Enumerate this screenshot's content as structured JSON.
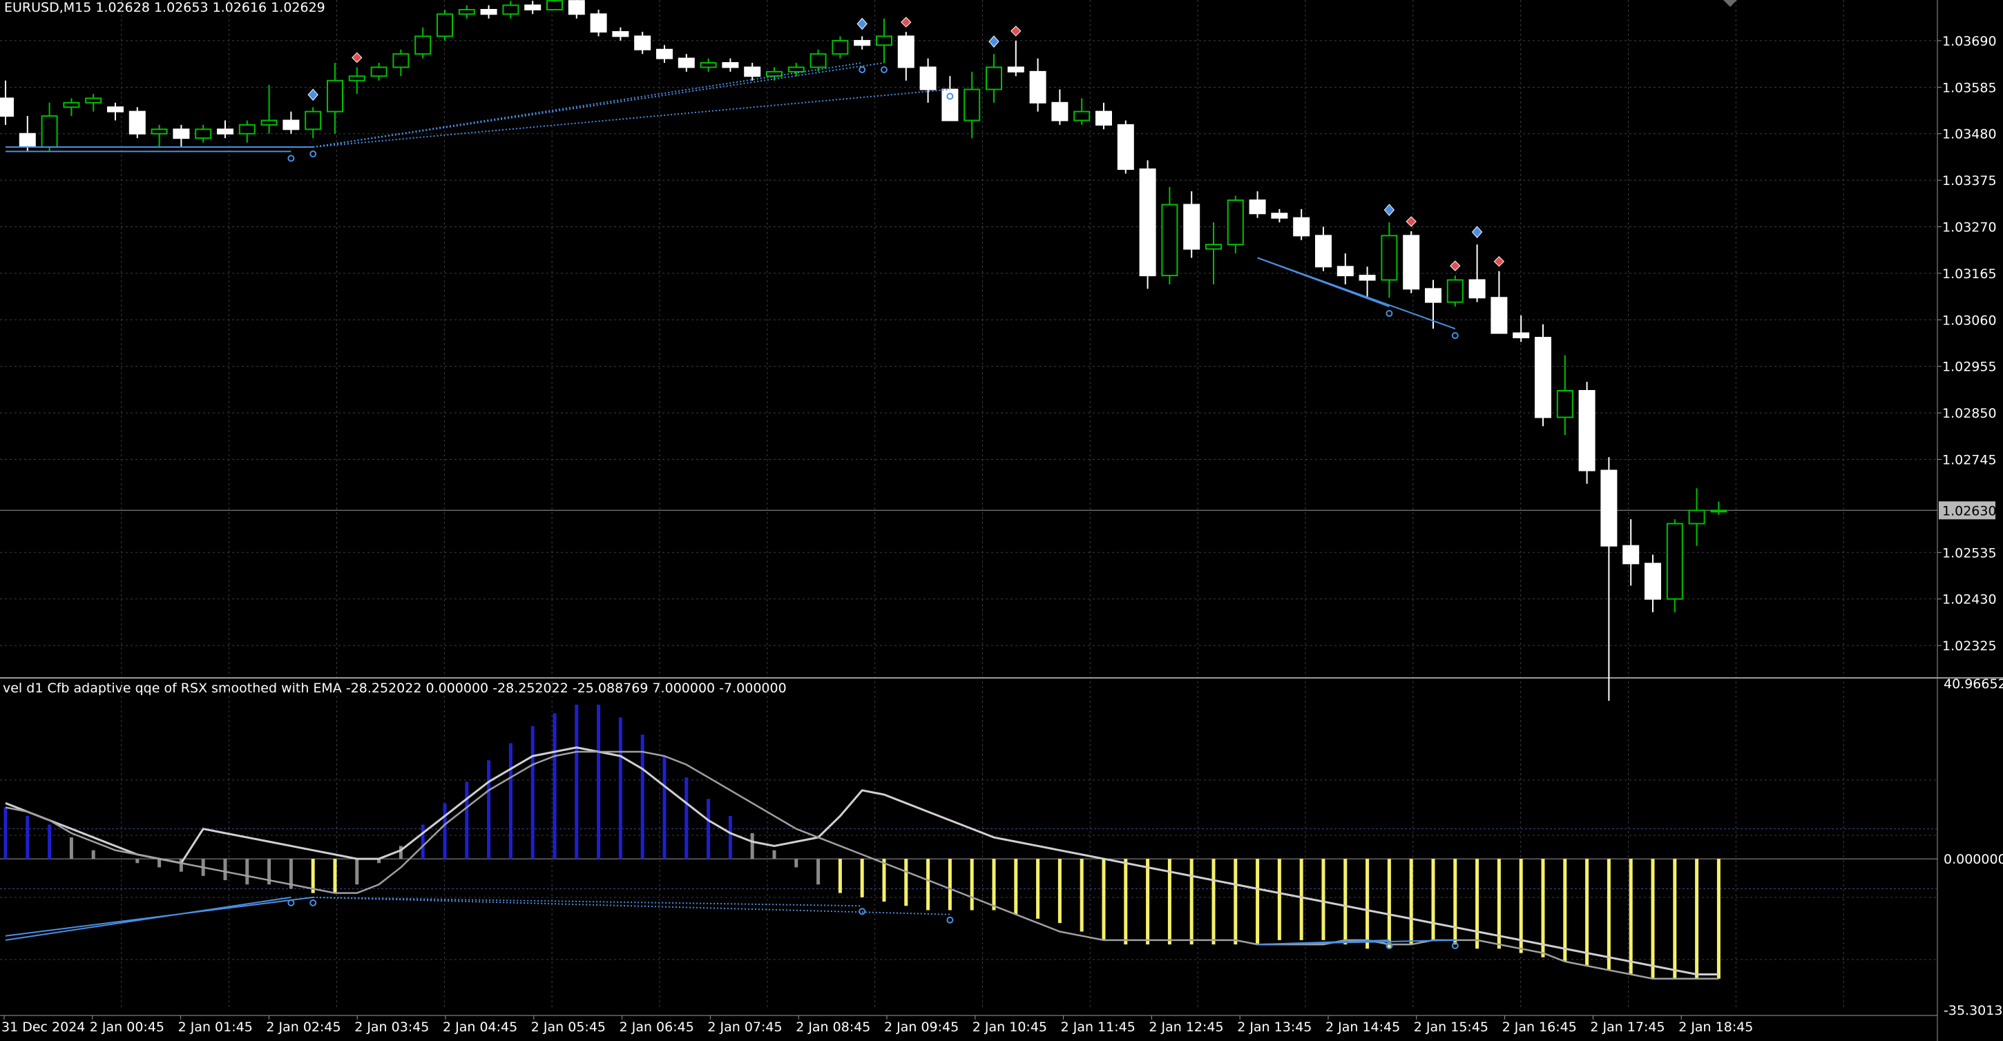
{
  "header": {
    "symbol_line": "EURUSD,M15  1.02628 1.02653 1.02616 1.02629",
    "indicator_line": "vel d1 Cfb adaptive qqe of RSX smoothed with EMA -28.252022 0.000000 -28.252022 -25.088769 7.000000 -7.000000"
  },
  "colors": {
    "background": "#000000",
    "grid": "#3a3f46",
    "bull_body": "#000000",
    "bull_outline": "#00c000",
    "bear_body": "#ffffff",
    "bear_outline": "#ffffff",
    "divergence_line": "#4a90e2",
    "histogram_positive": "#1f1fcf",
    "histogram_neutral": "#8a8a8a",
    "histogram_negative": "#f5f06a",
    "signal_line": "#c8c8c8",
    "level_line": "#6a6a6a",
    "arrow_buy": "#4a90e2",
    "arrow_sell": "#e05050"
  },
  "chart_data": [
    {
      "type": "candlestick",
      "title": "EURUSD,M15",
      "ohlc_header": {
        "open": 1.02628,
        "high": 1.02653,
        "low": 1.02616,
        "close": 1.02629
      },
      "price_ticks": [
        "1.03690",
        "1.03585",
        "1.03480",
        "1.03375",
        "1.03270",
        "1.03165",
        "1.03060",
        "1.02955",
        "1.02850",
        "1.02745",
        "1.02535",
        "1.02430",
        "1.02325"
      ],
      "current_price": "1.02630",
      "ylim": [
        1.02255,
        1.0376
      ],
      "x_labels": [
        "31 Dec 2024",
        "2 Jan 00:45",
        "2 Jan 01:45",
        "2 Jan 02:45",
        "2 Jan 03:45",
        "2 Jan 04:45",
        "2 Jan 05:45",
        "2 Jan 06:45",
        "2 Jan 07:45",
        "2 Jan 08:45",
        "2 Jan 09:45",
        "2 Jan 10:45",
        "2 Jan 11:45",
        "2 Jan 12:45",
        "2 Jan 13:45",
        "2 Jan 14:45",
        "2 Jan 15:45",
        "2 Jan 16:45",
        "2 Jan 17:45",
        "2 Jan 18:45"
      ],
      "candles": [
        [
          1.0356,
          1.036,
          1.035,
          1.0352
        ],
        [
          1.0348,
          1.0352,
          1.0344,
          1.0345
        ],
        [
          1.0345,
          1.0355,
          1.0344,
          1.0352
        ],
        [
          1.0354,
          1.0356,
          1.0352,
          1.0355
        ],
        [
          1.0355,
          1.0357,
          1.0353,
          1.0356
        ],
        [
          1.0354,
          1.0355,
          1.0351,
          1.0353
        ],
        [
          1.0353,
          1.0354,
          1.0347,
          1.0348
        ],
        [
          1.0348,
          1.035,
          1.0345,
          1.0349
        ],
        [
          1.0349,
          1.035,
          1.0345,
          1.0347
        ],
        [
          1.0347,
          1.035,
          1.0346,
          1.0349
        ],
        [
          1.0349,
          1.0351,
          1.0347,
          1.0348
        ],
        [
          1.0348,
          1.0351,
          1.0346,
          1.035
        ],
        [
          1.035,
          1.0359,
          1.0348,
          1.0351
        ],
        [
          1.0351,
          1.0353,
          1.0348,
          1.0349
        ],
        [
          1.0349,
          1.0354,
          1.0347,
          1.0353
        ],
        [
          1.0353,
          1.0364,
          1.0348,
          1.036
        ],
        [
          1.036,
          1.0363,
          1.0357,
          1.0361
        ],
        [
          1.0361,
          1.0364,
          1.036,
          1.0363
        ],
        [
          1.0363,
          1.0367,
          1.0361,
          1.0366
        ],
        [
          1.0366,
          1.0372,
          1.0365,
          1.037
        ],
        [
          1.037,
          1.0376,
          1.0369,
          1.0375
        ],
        [
          1.0375,
          1.0377,
          1.0374,
          1.0376
        ],
        [
          1.0376,
          1.0377,
          1.0374,
          1.0375
        ],
        [
          1.0375,
          1.0378,
          1.0374,
          1.0377
        ],
        [
          1.0377,
          1.0378,
          1.0375,
          1.0376
        ],
        [
          1.0376,
          1.038,
          1.0376,
          1.0378
        ],
        [
          1.0378,
          1.0379,
          1.0374,
          1.0375
        ],
        [
          1.0375,
          1.0376,
          1.037,
          1.0371
        ],
        [
          1.0371,
          1.0372,
          1.0369,
          1.037
        ],
        [
          1.037,
          1.0371,
          1.0366,
          1.0367
        ],
        [
          1.0367,
          1.0368,
          1.0364,
          1.0365
        ],
        [
          1.0365,
          1.0366,
          1.0362,
          1.0363
        ],
        [
          1.0363,
          1.0365,
          1.0362,
          1.0364
        ],
        [
          1.0364,
          1.0365,
          1.0362,
          1.0363
        ],
        [
          1.0363,
          1.0364,
          1.036,
          1.0361
        ],
        [
          1.0361,
          1.0363,
          1.036,
          1.0362
        ],
        [
          1.0362,
          1.0364,
          1.0361,
          1.0363
        ],
        [
          1.0363,
          1.0367,
          1.0362,
          1.0366
        ],
        [
          1.0366,
          1.037,
          1.0365,
          1.0369
        ],
        [
          1.0369,
          1.037,
          1.0367,
          1.0368
        ],
        [
          1.0368,
          1.0374,
          1.0364,
          1.037
        ],
        [
          1.037,
          1.0371,
          1.036,
          1.0363
        ],
        [
          1.0363,
          1.0365,
          1.0355,
          1.0358
        ],
        [
          1.0358,
          1.0361,
          1.0351,
          1.0351
        ],
        [
          1.0351,
          1.0362,
          1.0347,
          1.0358
        ],
        [
          1.0358,
          1.0366,
          1.0355,
          1.0363
        ],
        [
          1.0363,
          1.0369,
          1.0361,
          1.0362
        ],
        [
          1.0362,
          1.0365,
          1.0353,
          1.0355
        ],
        [
          1.0355,
          1.0358,
          1.035,
          1.0351
        ],
        [
          1.0351,
          1.0356,
          1.035,
          1.0353
        ],
        [
          1.0353,
          1.0355,
          1.0349,
          1.035
        ],
        [
          1.035,
          1.0351,
          1.0339,
          1.034
        ],
        [
          1.034,
          1.0342,
          1.0313,
          1.0316
        ],
        [
          1.0316,
          1.0336,
          1.0314,
          1.0332
        ],
        [
          1.0332,
          1.0335,
          1.032,
          1.0322
        ],
        [
          1.0322,
          1.0328,
          1.0314,
          1.0323
        ],
        [
          1.0323,
          1.0334,
          1.0321,
          1.0333
        ],
        [
          1.0333,
          1.0335,
          1.0329,
          1.033
        ],
        [
          1.033,
          1.0331,
          1.0328,
          1.0329
        ],
        [
          1.0329,
          1.0331,
          1.0324,
          1.0325
        ],
        [
          1.0325,
          1.0327,
          1.0317,
          1.0318
        ],
        [
          1.0318,
          1.0321,
          1.0314,
          1.0316
        ],
        [
          1.0316,
          1.0318,
          1.0311,
          1.0315
        ],
        [
          1.0315,
          1.0328,
          1.0311,
          1.0325
        ],
        [
          1.0325,
          1.0326,
          1.0312,
          1.0313
        ],
        [
          1.0313,
          1.0315,
          1.0304,
          1.031
        ],
        [
          1.031,
          1.0316,
          1.0309,
          1.0315
        ],
        [
          1.0315,
          1.0323,
          1.031,
          1.0311
        ],
        [
          1.0311,
          1.0317,
          1.0303,
          1.0303
        ],
        [
          1.0303,
          1.0307,
          1.0301,
          1.0302
        ],
        [
          1.0302,
          1.0305,
          1.0282,
          1.0284
        ],
        [
          1.0284,
          1.0298,
          1.028,
          1.029
        ],
        [
          1.029,
          1.0292,
          1.0269,
          1.0272
        ],
        [
          1.0272,
          1.0275,
          1.022,
          1.0255
        ],
        [
          1.0255,
          1.0261,
          1.0246,
          1.0251
        ],
        [
          1.0251,
          1.0253,
          1.024,
          1.0243
        ],
        [
          1.0243,
          1.0261,
          1.024,
          1.026
        ],
        [
          1.026,
          1.0268,
          1.0255,
          1.0263
        ],
        [
          1.0263,
          1.0265,
          1.0262,
          1.0263
        ]
      ],
      "buy_arrows": [
        14,
        39,
        45,
        63,
        67
      ],
      "sell_arrows": [
        16,
        41,
        46,
        64,
        66,
        68
      ],
      "divergence_lines": [
        {
          "from": [
            0,
            1.0344
          ],
          "to": [
            13,
            1.0344
          ]
        },
        {
          "from": [
            0,
            1.0345
          ],
          "to": [
            14,
            1.0345
          ]
        },
        {
          "from": [
            14,
            1.0345
          ],
          "to": [
            39,
            1.0364
          ]
        },
        {
          "from": [
            14,
            1.0345
          ],
          "to": [
            40,
            1.0364
          ]
        },
        {
          "from": [
            14,
            1.0345
          ],
          "to": [
            43,
            1.0358
          ]
        },
        {
          "from": [
            57,
            1.032
          ],
          "to": [
            63,
            1.0309
          ]
        },
        {
          "from": [
            57,
            1.032
          ],
          "to": [
            66,
            1.0304
          ]
        }
      ]
    },
    {
      "type": "bar",
      "title": "vel d1 Cfb adaptive qqe of RSX smoothed with EMA",
      "header_values": [
        -28.252022,
        0.0,
        -28.252022,
        -25.088769,
        7.0,
        -7.0
      ],
      "y_ticks": [
        "40.966526",
        "0.000000",
        "-35.301314"
      ],
      "ylim": [
        -35.301314,
        40.966526
      ],
      "levels": [
        7.0,
        0.0,
        -7.0
      ],
      "histogram": [
        12,
        10,
        8,
        5,
        2,
        0,
        -1,
        -2,
        -3,
        -4,
        -5,
        -6,
        -6,
        -7,
        -8,
        -8,
        -6,
        -1,
        3,
        8,
        13,
        18,
        23,
        27,
        31,
        34,
        36,
        36,
        33,
        29,
        24,
        19,
        14,
        10,
        6,
        2,
        -2,
        -6,
        -8,
        -9,
        -10,
        -11,
        -12,
        -12,
        -12,
        -12,
        -13,
        -14,
        -15,
        -17,
        -19,
        -20,
        -20,
        -20,
        -20,
        -20,
        -20,
        -20,
        -19,
        -19,
        -19,
        -20,
        -21,
        -21,
        -20,
        -19,
        -20,
        -21,
        -21,
        -22,
        -23,
        -24,
        -25,
        -26,
        -27,
        -28,
        -28,
        -28,
        -28
      ],
      "signal": [
        12,
        11,
        9,
        6,
        4,
        2,
        1,
        0,
        -1,
        -2,
        -3,
        -4,
        -5,
        -6,
        -7,
        -8,
        -8,
        -6,
        -2,
        3,
        8,
        12,
        16,
        19,
        22,
        24,
        25,
        25,
        25,
        25,
        24,
        22,
        19,
        16,
        13,
        10,
        7,
        5,
        3,
        1,
        -1,
        -3,
        -5,
        -7,
        -9,
        -11,
        -13,
        -15,
        -17,
        -18,
        -19,
        -19,
        -19,
        -19,
        -19,
        -19,
        -19,
        -20,
        -20,
        -20,
        -20,
        -19,
        -19,
        -20,
        -20,
        -19,
        -19,
        -19,
        -20,
        -21,
        -22,
        -24,
        -25,
        -26,
        -27,
        -28,
        -28,
        -28,
        -28
      ],
      "grey_overlay": [
        13,
        11,
        9,
        7,
        5,
        3,
        1,
        0,
        -1,
        7,
        6,
        5,
        4,
        3,
        2,
        1,
        0,
        0,
        2,
        6,
        10,
        14,
        18,
        21,
        24,
        25,
        26,
        25,
        24,
        21,
        17,
        13,
        9,
        6,
        4,
        3,
        4,
        5,
        10,
        16,
        15,
        13,
        11,
        9,
        7,
        5,
        4,
        3,
        2,
        1,
        0,
        -1,
        -2,
        -3,
        -4,
        -5,
        -6,
        -7,
        -8,
        -9,
        -10,
        -11,
        -12,
        -13,
        -14,
        -15,
        -16,
        -17,
        -18,
        -19,
        -20,
        -21,
        -22,
        -23,
        -24,
        -25,
        -26,
        -27,
        -27
      ],
      "divergence_lines": [
        {
          "from": [
            0,
            -19
          ],
          "to": [
            13,
            -9
          ]
        },
        {
          "from": [
            0,
            -18
          ],
          "to": [
            14,
            -9
          ]
        },
        {
          "from": [
            14,
            -9
          ],
          "to": [
            39,
            -11
          ]
        },
        {
          "from": [
            14,
            -9
          ],
          "to": [
            43,
            -13
          ]
        },
        {
          "from": [
            57,
            -20
          ],
          "to": [
            63,
            -19
          ]
        },
        {
          "from": [
            57,
            -20
          ],
          "to": [
            66,
            -19
          ]
        }
      ]
    }
  ]
}
